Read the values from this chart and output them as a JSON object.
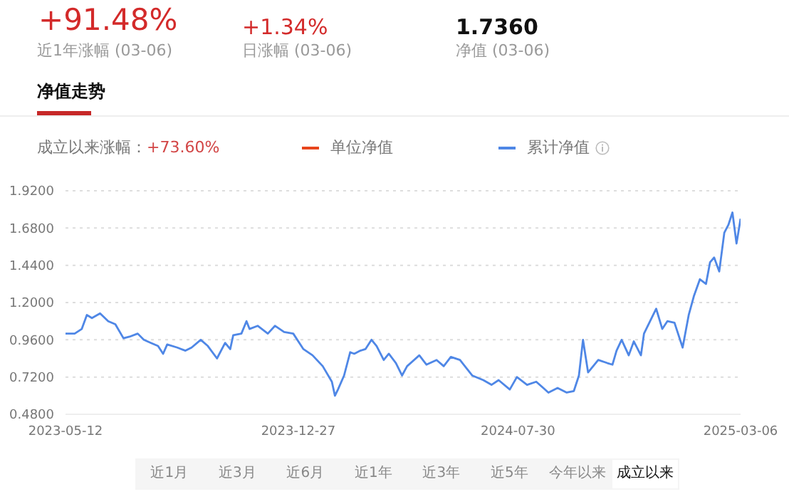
{
  "chart_data": {
    "type": "line",
    "title": "净值走势",
    "annotations": [
      "+91.48%",
      "近1年涨幅 (03-06)",
      "+1.34%",
      "日涨幅 (03-06)",
      "1.7360",
      "净值 (03-06)",
      "成立以来涨幅：",
      "+73.60%",
      "近1月",
      "近3月",
      "近6月",
      "近1年",
      "近3年",
      "近5年",
      "今年以来",
      "成立以来"
    ],
    "x": [
      "2023-05-12",
      "2023-05-21",
      "2023-05-28",
      "2023-06-02",
      "2023-06-07",
      "2023-06-15",
      "2023-06-23",
      "2023-06-30",
      "2023-07-08",
      "2023-07-14",
      "2023-07-22",
      "2023-07-28",
      "2023-08-04",
      "2023-08-11",
      "2023-08-16",
      "2023-08-20",
      "2023-08-30",
      "2023-09-07",
      "2023-09-13",
      "2023-09-22",
      "2023-09-29",
      "2023-10-08",
      "2023-10-16",
      "2023-10-21",
      "2023-10-24",
      "2023-11-01",
      "2023-11-06",
      "2023-11-09",
      "2023-11-17",
      "2023-11-27",
      "2023-12-04",
      "2023-12-13",
      "2023-12-22",
      "2024-01-01",
      "2024-01-10",
      "2024-01-20",
      "2024-01-29",
      "2024-02-01",
      "2024-02-04",
      "2024-02-10",
      "2024-02-16",
      "2024-02-20",
      "2024-02-26",
      "2024-03-02",
      "2024-03-08",
      "2024-03-13",
      "2024-03-20",
      "2024-03-25",
      "2024-04-01",
      "2024-04-07",
      "2024-04-12",
      "2024-04-24",
      "2024-05-01",
      "2024-05-11",
      "2024-05-18",
      "2024-05-25",
      "2024-06-03",
      "2024-06-15",
      "2024-06-26",
      "2024-07-04",
      "2024-07-11",
      "2024-07-22",
      "2024-07-29",
      "2024-08-08",
      "2024-08-17",
      "2024-08-29",
      "2024-09-07",
      "2024-09-16",
      "2024-09-23",
      "2024-09-28",
      "2024-10-02",
      "2024-10-07",
      "2024-10-17",
      "2024-10-26",
      "2024-10-31",
      "2024-11-04",
      "2024-11-09",
      "2024-11-16",
      "2024-11-21",
      "2024-11-28",
      "2024-12-01",
      "2024-12-07",
      "2024-12-13",
      "2024-12-19",
      "2024-12-24",
      "2024-12-31",
      "2025-01-08",
      "2025-01-14",
      "2025-01-19",
      "2025-01-25",
      "2025-01-31",
      "2025-02-04",
      "2025-02-08",
      "2025-02-13",
      "2025-02-18",
      "2025-02-22",
      "2025-02-26",
      "2025-03-02",
      "2025-03-06"
    ],
    "series": [
      {
        "name": "单位净值",
        "color": "#e8451c",
        "values": [
          null,
          null,
          null,
          null,
          null,
          null,
          null,
          null,
          null,
          null,
          null,
          null,
          null,
          null,
          null,
          null,
          null,
          null,
          null,
          null,
          null,
          null,
          null,
          null,
          null,
          null,
          null,
          null,
          null,
          null,
          null,
          null,
          null,
          null,
          null,
          null,
          null,
          null,
          null,
          null,
          null,
          null,
          null,
          null,
          null,
          null,
          null,
          null,
          null,
          null,
          null,
          null,
          null,
          null,
          null,
          null,
          null,
          null,
          null,
          null,
          null,
          null,
          null,
          null,
          null,
          null,
          null,
          null,
          null,
          null,
          null,
          null,
          null,
          null,
          null,
          null,
          null,
          null,
          null,
          null,
          null,
          null,
          null,
          null,
          null,
          null,
          null,
          null,
          null,
          null,
          null,
          null,
          null,
          null,
          null,
          null,
          null,
          null,
          null
        ]
      },
      {
        "name": "累计净值",
        "color": "#4f87e6",
        "values": [
          1.0,
          1.0,
          1.03,
          1.12,
          1.1,
          1.13,
          1.08,
          1.06,
          0.97,
          0.98,
          1.0,
          0.96,
          0.94,
          0.92,
          0.87,
          0.93,
          0.91,
          0.89,
          0.91,
          0.96,
          0.92,
          0.84,
          0.94,
          0.9,
          0.99,
          1.0,
          1.08,
          1.03,
          1.05,
          1.0,
          1.05,
          1.01,
          1.0,
          0.9,
          0.86,
          0.79,
          0.69,
          0.6,
          0.64,
          0.73,
          0.88,
          0.87,
          0.89,
          0.9,
          0.96,
          0.92,
          0.83,
          0.87,
          0.81,
          0.73,
          0.79,
          0.86,
          0.8,
          0.83,
          0.79,
          0.85,
          0.83,
          0.73,
          0.7,
          0.67,
          0.7,
          0.64,
          0.72,
          0.67,
          0.69,
          0.62,
          0.65,
          0.62,
          0.63,
          0.73,
          0.96,
          0.75,
          0.83,
          0.81,
          0.8,
          0.89,
          0.96,
          0.86,
          0.95,
          0.86,
          1.0,
          1.08,
          1.16,
          1.03,
          1.08,
          1.07,
          0.91,
          1.12,
          1.24,
          1.35,
          1.32,
          1.46,
          1.49,
          1.4,
          1.65,
          1.7,
          1.78,
          1.58,
          1.74
        ]
      }
    ],
    "xlim": [
      "2023-05-12",
      "2025-03-06"
    ],
    "xticks": [
      "2023-05-12",
      "2023-12-27",
      "2024-07-30",
      "2025-03-06"
    ],
    "ylim": [
      0.48,
      1.92
    ],
    "yticks": [
      {
        "value": 0.48,
        "label": "0.4800"
      },
      {
        "value": 0.72,
        "label": "0.7200"
      },
      {
        "value": 0.96,
        "label": "0.9600"
      },
      {
        "value": 1.2,
        "label": "1.2000"
      },
      {
        "value": 1.44,
        "label": "1.4400"
      },
      {
        "value": 1.68,
        "label": "1.6800"
      },
      {
        "value": 1.92,
        "label": "1.9200"
      }
    ],
    "grid": "y",
    "legend": "top",
    "marker": "none",
    "line_style": "solid"
  }
}
